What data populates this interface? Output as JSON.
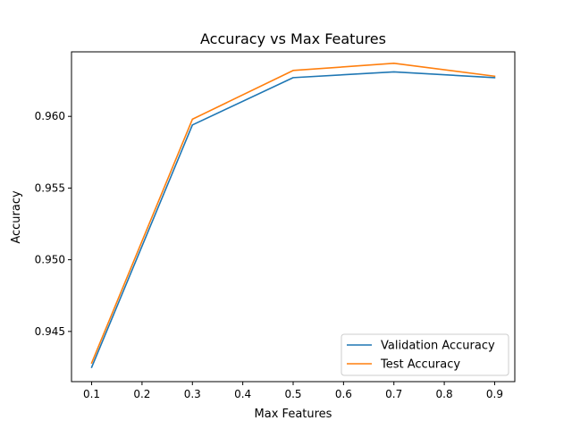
{
  "chart_data": {
    "type": "line",
    "title": "Accuracy vs Max Features",
    "xlabel": "Max Features",
    "ylabel": "Accuracy",
    "x": [
      0.1,
      0.3,
      0.5,
      0.7,
      0.9
    ],
    "xlim": [
      0.06,
      0.94
    ],
    "ylim": [
      0.9415,
      0.9645
    ],
    "xticks": [
      0.1,
      0.2,
      0.3,
      0.4,
      0.5,
      0.6,
      0.7,
      0.8,
      0.9
    ],
    "xtick_labels": [
      "0.1",
      "0.2",
      "0.3",
      "0.4",
      "0.5",
      "0.6",
      "0.7",
      "0.8",
      "0.9"
    ],
    "yticks": [
      0.945,
      0.95,
      0.955,
      0.96
    ],
    "ytick_labels": [
      "0.945",
      "0.950",
      "0.955",
      "0.960"
    ],
    "grid": false,
    "legend_position": "lower-right",
    "series": [
      {
        "name": "Validation Accuracy",
        "color": "#1f77b4",
        "values": [
          0.9425,
          0.9594,
          0.9627,
          0.9631,
          0.9627
        ]
      },
      {
        "name": "Test Accuracy",
        "color": "#ff7f0e",
        "values": [
          0.9428,
          0.9598,
          0.9632,
          0.9637,
          0.9628
        ]
      }
    ]
  }
}
